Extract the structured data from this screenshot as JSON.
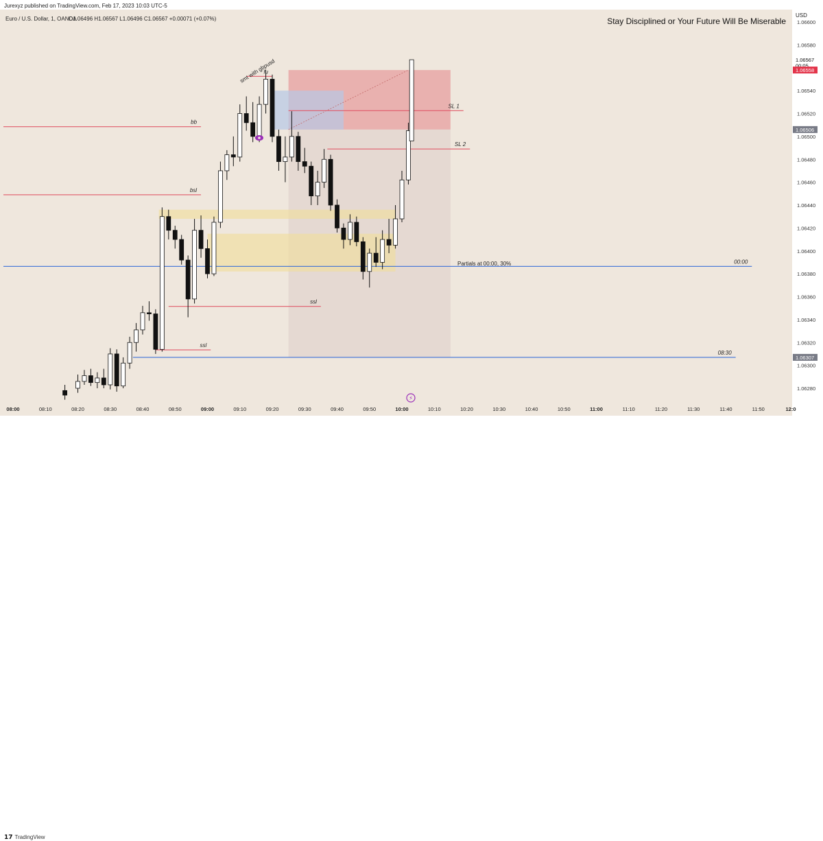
{
  "publisher_line": "Jurexyz published on TradingView.com, Feb 17, 2023 10:03 UTC-5",
  "footer_brand": "TradingView",
  "chart_data": {
    "type": "candlestick",
    "symbol_info": "Euro / U.S. Dollar, 1, OANDA",
    "ohlc_readout": "O1.06496 H1.06567 L1.06496 C1.06567 +0.00071 (+0.07%)",
    "headline": "Stay Disciplined or Your Future Will Be Miserable",
    "currency": "USD",
    "y_ticks": [
      "1.06600",
      "1.06580",
      "1.06540",
      "1.06520",
      "1.06500",
      "1.06480",
      "1.06460",
      "1.06440",
      "1.06420",
      "1.06400",
      "1.06380",
      "1.06360",
      "1.06340",
      "1.06320",
      "1.06300",
      "1.06280"
    ],
    "y_tick_values": [
      1.066,
      1.0658,
      1.0654,
      1.0652,
      1.065,
      1.0648,
      1.0646,
      1.0644,
      1.0642,
      1.064,
      1.0638,
      1.0636,
      1.0634,
      1.0632,
      1.063,
      1.0628
    ],
    "x_ticks": [
      "08:00",
      "08:10",
      "08:20",
      "08:30",
      "08:40",
      "08:50",
      "09:00",
      "09:10",
      "09:20",
      "09:30",
      "09:40",
      "09:50",
      "10:00",
      "10:10",
      "10:20",
      "10:30",
      "10:40",
      "10:50",
      "11:00",
      "11:10",
      "11:20",
      "11:30",
      "11:40",
      "11:50",
      "12:0"
    ],
    "bold_x_ticks": [
      "08:00",
      "09:00",
      "10:00",
      "11:00",
      "12:0"
    ],
    "price_labels": [
      {
        "text": "1.06567",
        "value": 1.06567,
        "kind": "current"
      },
      {
        "text": "00:05",
        "value": 1.06562,
        "kind": "countdown"
      },
      {
        "text": "1.06558",
        "value": 1.06558,
        "kind": "red"
      },
      {
        "text": "1.06506",
        "value": 1.06506,
        "kind": "gray"
      },
      {
        "text": "1.06307",
        "value": 1.06307,
        "kind": "gray"
      }
    ],
    "levels": [
      {
        "label": "bb",
        "price": 1.065085,
        "color": "#e05a6a",
        "start": "08:00",
        "end": "08:58"
      },
      {
        "label": "bsl",
        "price": 1.06449,
        "color": "#e05a6a",
        "start": "08:00",
        "end": "08:58"
      },
      {
        "label": "ssl",
        "price": 1.063515,
        "color": "#e05a6a",
        "start": "08:48",
        "end": "09:35"
      },
      {
        "label": "ssl",
        "price": 1.063135,
        "color": "#e05a6a",
        "start": "08:44",
        "end": "09:01"
      },
      {
        "label": "SL 1",
        "price": 1.065225,
        "color": "#e05a6a",
        "start": "09:25",
        "end": "10:19"
      },
      {
        "label": "SL 2",
        "price": 1.06489,
        "color": "#e05a6a",
        "start": "09:37",
        "end": "10:21"
      },
      {
        "label": "fu",
        "price": 1.065525,
        "color": "#e05a6a",
        "start": "09:12",
        "end": "09:20"
      },
      {
        "label": "00:00",
        "price": 1.063865,
        "color": "#3a6fd8",
        "start": "08:00",
        "end": "11:48"
      },
      {
        "label": "08:30",
        "price": 1.06307,
        "color": "#3a6fd8",
        "start": "08:37",
        "end": "11:43"
      }
    ],
    "annotations": [
      "smt with gbpusd",
      "Partials at 00:00, 30%"
    ],
    "candles": [
      {
        "t": "08:16",
        "o": 1.06278,
        "h": 1.06283,
        "l": 1.0627,
        "c": 1.06274
      },
      {
        "t": "08:20",
        "o": 1.0628,
        "h": 1.06292,
        "l": 1.06276,
        "c": 1.06286
      },
      {
        "t": "08:22",
        "o": 1.06286,
        "h": 1.06296,
        "l": 1.06283,
        "c": 1.06291
      },
      {
        "t": "08:24",
        "o": 1.06291,
        "h": 1.06297,
        "l": 1.06282,
        "c": 1.06285
      },
      {
        "t": "08:26",
        "o": 1.06285,
        "h": 1.06294,
        "l": 1.0628,
        "c": 1.06289
      },
      {
        "t": "08:28",
        "o": 1.06289,
        "h": 1.06297,
        "l": 1.0628,
        "c": 1.06283
      },
      {
        "t": "08:30",
        "o": 1.06283,
        "h": 1.06315,
        "l": 1.06279,
        "c": 1.0631
      },
      {
        "t": "08:32",
        "o": 1.0631,
        "h": 1.06314,
        "l": 1.06277,
        "c": 1.06282
      },
      {
        "t": "08:34",
        "o": 1.06282,
        "h": 1.06307,
        "l": 1.0628,
        "c": 1.06302
      },
      {
        "t": "08:36",
        "o": 1.06302,
        "h": 1.06325,
        "l": 1.06297,
        "c": 1.0632
      },
      {
        "t": "08:38",
        "o": 1.0632,
        "h": 1.06337,
        "l": 1.06312,
        "c": 1.06331
      },
      {
        "t": "08:40",
        "o": 1.06331,
        "h": 1.06352,
        "l": 1.06327,
        "c": 1.06346
      },
      {
        "t": "08:42",
        "o": 1.06346,
        "h": 1.06356,
        "l": 1.06339,
        "c": 1.06345
      },
      {
        "t": "08:44",
        "o": 1.06345,
        "h": 1.06349,
        "l": 1.0631,
        "c": 1.06314
      },
      {
        "t": "08:46",
        "o": 1.06314,
        "h": 1.06438,
        "l": 1.06312,
        "c": 1.0643
      },
      {
        "t": "08:48",
        "o": 1.0643,
        "h": 1.06436,
        "l": 1.0641,
        "c": 1.06418
      },
      {
        "t": "08:50",
        "o": 1.06418,
        "h": 1.06422,
        "l": 1.06402,
        "c": 1.0641
      },
      {
        "t": "08:52",
        "o": 1.0641,
        "h": 1.06414,
        "l": 1.06388,
        "c": 1.06392
      },
      {
        "t": "08:54",
        "o": 1.06392,
        "h": 1.06396,
        "l": 1.06342,
        "c": 1.06358
      },
      {
        "t": "08:56",
        "o": 1.06358,
        "h": 1.06428,
        "l": 1.06354,
        "c": 1.06418
      },
      {
        "t": "08:58",
        "o": 1.06418,
        "h": 1.06431,
        "l": 1.06394,
        "c": 1.06402
      },
      {
        "t": "09:00",
        "o": 1.06402,
        "h": 1.0641,
        "l": 1.06376,
        "c": 1.0638
      },
      {
        "t": "09:02",
        "o": 1.0638,
        "h": 1.0643,
        "l": 1.06378,
        "c": 1.06425
      },
      {
        "t": "09:04",
        "o": 1.06425,
        "h": 1.06478,
        "l": 1.0642,
        "c": 1.0647
      },
      {
        "t": "09:06",
        "o": 1.0647,
        "h": 1.06488,
        "l": 1.06462,
        "c": 1.06484
      },
      {
        "t": "09:08",
        "o": 1.06484,
        "h": 1.065,
        "l": 1.06474,
        "c": 1.06482
      },
      {
        "t": "09:10",
        "o": 1.06482,
        "h": 1.06528,
        "l": 1.06478,
        "c": 1.0652
      },
      {
        "t": "09:12",
        "o": 1.0652,
        "h": 1.06535,
        "l": 1.06505,
        "c": 1.06512
      },
      {
        "t": "09:14",
        "o": 1.06512,
        "h": 1.0653,
        "l": 1.06495,
        "c": 1.065
      },
      {
        "t": "09:16",
        "o": 1.065,
        "h": 1.06535,
        "l": 1.06495,
        "c": 1.06528
      },
      {
        "t": "09:18",
        "o": 1.06528,
        "h": 1.06558,
        "l": 1.0652,
        "c": 1.0655
      },
      {
        "t": "09:20",
        "o": 1.0655,
        "h": 1.06554,
        "l": 1.06495,
        "c": 1.065
      },
      {
        "t": "09:22",
        "o": 1.065,
        "h": 1.06506,
        "l": 1.0647,
        "c": 1.06478
      },
      {
        "t": "09:24",
        "o": 1.06478,
        "h": 1.065,
        "l": 1.0646,
        "c": 1.06482
      },
      {
        "t": "09:26",
        "o": 1.06482,
        "h": 1.06522,
        "l": 1.06478,
        "c": 1.065
      },
      {
        "t": "09:28",
        "o": 1.065,
        "h": 1.06504,
        "l": 1.0647,
        "c": 1.06478
      },
      {
        "t": "09:30",
        "o": 1.06478,
        "h": 1.0649,
        "l": 1.06468,
        "c": 1.06474
      },
      {
        "t": "09:32",
        "o": 1.06474,
        "h": 1.06478,
        "l": 1.0644,
        "c": 1.06448
      },
      {
        "t": "09:34",
        "o": 1.06448,
        "h": 1.0647,
        "l": 1.0644,
        "c": 1.0646
      },
      {
        "t": "09:36",
        "o": 1.0646,
        "h": 1.06489,
        "l": 1.06455,
        "c": 1.0648
      },
      {
        "t": "09:38",
        "o": 1.0648,
        "h": 1.06484,
        "l": 1.06435,
        "c": 1.0644
      },
      {
        "t": "09:40",
        "o": 1.0644,
        "h": 1.06445,
        "l": 1.06416,
        "c": 1.0642
      },
      {
        "t": "09:42",
        "o": 1.0642,
        "h": 1.06424,
        "l": 1.06402,
        "c": 1.0641
      },
      {
        "t": "09:44",
        "o": 1.0641,
        "h": 1.06432,
        "l": 1.06405,
        "c": 1.06425
      },
      {
        "t": "09:46",
        "o": 1.06425,
        "h": 1.0643,
        "l": 1.06404,
        "c": 1.06408
      },
      {
        "t": "09:48",
        "o": 1.06408,
        "h": 1.06412,
        "l": 1.06375,
        "c": 1.06382
      },
      {
        "t": "09:50",
        "o": 1.06382,
        "h": 1.06402,
        "l": 1.06368,
        "c": 1.06398
      },
      {
        "t": "09:52",
        "o": 1.06398,
        "h": 1.06412,
        "l": 1.06386,
        "c": 1.0639
      },
      {
        "t": "09:54",
        "o": 1.0639,
        "h": 1.06418,
        "l": 1.06384,
        "c": 1.0641
      },
      {
        "t": "09:56",
        "o": 1.0641,
        "h": 1.06428,
        "l": 1.06398,
        "c": 1.06405
      },
      {
        "t": "09:58",
        "o": 1.06405,
        "h": 1.0644,
        "l": 1.06402,
        "c": 1.06428
      },
      {
        "t": "10:00",
        "o": 1.06428,
        "h": 1.0647,
        "l": 1.06425,
        "c": 1.06462
      },
      {
        "t": "10:02",
        "o": 1.06462,
        "h": 1.06512,
        "l": 1.06458,
        "c": 1.06505
      },
      {
        "t": "10:03",
        "o": 1.06496,
        "h": 1.06567,
        "l": 1.06496,
        "c": 1.06567
      }
    ],
    "zones": [
      {
        "color": "#e8a7a7",
        "opacity": 0.85,
        "start": "09:25",
        "end": "10:15",
        "top": 1.06558,
        "bottom": 1.06506
      },
      {
        "color": "#e3d7d0",
        "opacity": 0.9,
        "start": "09:25",
        "end": "10:15",
        "top": 1.06506,
        "bottom": 1.06307
      },
      {
        "color": "#f0dd9a",
        "opacity": 0.6,
        "start": "08:45",
        "end": "09:58",
        "top": 1.06436,
        "bottom": 1.06428
      },
      {
        "color": "#f0dd9a",
        "opacity": 0.6,
        "start": "09:00",
        "end": "09:58",
        "top": 1.06415,
        "bottom": 1.06382
      },
      {
        "color": "#b7c7e5",
        "opacity": 0.7,
        "start": "09:20",
        "end": "09:42",
        "top": 1.0654,
        "bottom": 1.06506
      }
    ]
  }
}
